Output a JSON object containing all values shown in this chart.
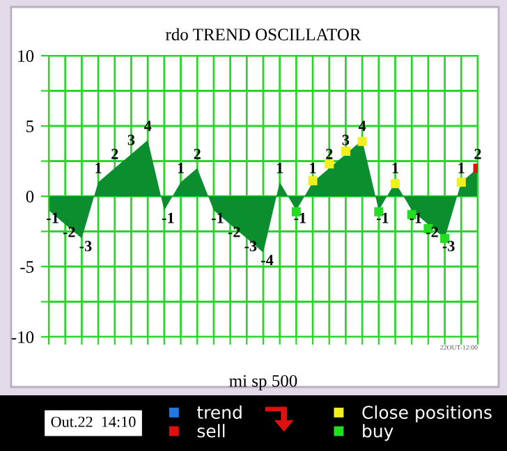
{
  "chart_data": {
    "type": "area",
    "title": "rdo TREND OSCILLATOR",
    "xlabel": "mi sp 500",
    "categories": [
      null,
      null,
      null,
      null,
      null,
      null,
      null,
      null,
      null,
      null,
      null,
      null,
      null,
      null,
      null,
      null,
      null,
      null,
      null,
      null,
      null,
      null,
      null,
      null,
      null,
      null,
      null
    ],
    "series": [
      {
        "color": "#0b8f2e",
        "values": [
          -1,
          -2,
          -3,
          1,
          2,
          3,
          4,
          -1,
          1,
          2,
          -1,
          -2,
          -3,
          -4,
          1,
          -1,
          1,
          2,
          3,
          4,
          -1,
          1,
          -1,
          -2,
          -3,
          1,
          2
        ],
        "data_labels": true
      },
      {
        "type": "scatter",
        "marker": "square",
        "name": "trend",
        "color": "#1e78e6",
        "values": [
          null,
          null,
          null,
          null,
          null,
          null,
          null,
          null,
          null,
          null,
          null,
          null,
          null,
          null,
          null,
          null,
          null,
          null,
          null,
          null,
          null,
          null,
          null,
          null,
          null,
          null,
          null
        ]
      },
      {
        "type": "scatter",
        "marker": "square",
        "name": "sell",
        "color": "#e01010",
        "values": [
          null,
          null,
          null,
          null,
          null,
          null,
          null,
          null,
          null,
          null,
          null,
          null,
          null,
          null,
          null,
          null,
          null,
          null,
          null,
          null,
          null,
          null,
          null,
          null,
          null,
          null,
          2
        ]
      },
      {
        "type": "scatter",
        "marker": "square",
        "name": "Close positions",
        "color": "#f0f020",
        "values": [
          null,
          null,
          null,
          null,
          null,
          null,
          null,
          null,
          null,
          null,
          null,
          null,
          null,
          null,
          null,
          null,
          1.1,
          2.3,
          3.2,
          3.9,
          null,
          0.9,
          null,
          null,
          null,
          1,
          null
        ]
      },
      {
        "type": "scatter",
        "marker": "square",
        "name": "buy",
        "color": "#22dd22",
        "values": [
          null,
          null,
          null,
          null,
          null,
          null,
          null,
          null,
          null,
          null,
          null,
          null,
          null,
          null,
          null,
          -1.1,
          null,
          null,
          null,
          null,
          -1.1,
          null,
          -1.3,
          -2.3,
          -3,
          null,
          null
        ]
      }
    ],
    "ylim": [
      -10,
      10
    ],
    "yticks": [
      -10,
      {
        "value": -7.5,
        "label": null
      },
      -5,
      {
        "value": -2.5,
        "label": null
      },
      0,
      {
        "value": 2.5,
        "label": null
      },
      5,
      {
        "value": 7.5,
        "label": null
      },
      10
    ],
    "grid": true,
    "legend": "bottom",
    "annotations": [
      "Out.22  14:10",
      "22OUT-12:00"
    ]
  }
}
